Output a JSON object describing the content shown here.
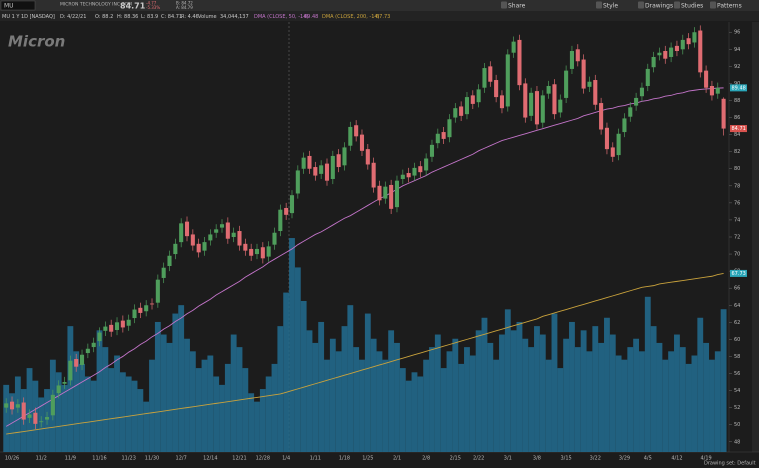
{
  "toolbar": {
    "symbol": "MU",
    "buttons": [
      "Share",
      "Style",
      "Drawings",
      "Studies",
      "Patterns"
    ]
  },
  "header": {
    "company": "MICRON TECHNOLOGY INC COM",
    "last": "84.71",
    "change": "-4.77",
    "change_pct": "-5.33%",
    "bid": "B: 84.72",
    "ask": "A: 84.79",
    "study_line": [
      "MU 1 Y 1D [NASDAQ]",
      "D: 4/22/21",
      "O: 88.2",
      "H: 88.36",
      "L: 83.9",
      "C: 84.71",
      "R: 4.46",
      "Volume"
    ],
    "volume_text": "34,044,137",
    "logo": "Micron",
    "drawing_set": "Drawing set: Default"
  },
  "chart_data": {
    "type": "candlestick",
    "categories": [
      null,
      "10/26",
      null,
      null,
      null,
      null,
      "11/2",
      null,
      null,
      null,
      null,
      "11/9",
      null,
      null,
      null,
      null,
      "11/16",
      null,
      null,
      null,
      null,
      "11/23",
      null,
      null,
      null,
      "11/30",
      null,
      null,
      null,
      null,
      "12/7",
      null,
      null,
      null,
      null,
      "12/14",
      null,
      null,
      null,
      null,
      "12/21",
      null,
      null,
      null,
      "12/28",
      null,
      null,
      null,
      "1/4",
      null,
      null,
      null,
      null,
      "1/11",
      null,
      null,
      null,
      null,
      "1/18",
      null,
      null,
      null,
      "1/25",
      null,
      null,
      null,
      null,
      "2/1",
      null,
      null,
      null,
      null,
      "2/8",
      null,
      null,
      null,
      null,
      "2/15",
      null,
      null,
      null,
      "2/22",
      null,
      null,
      null,
      null,
      "3/1",
      null,
      null,
      null,
      null,
      "3/8",
      null,
      null,
      null,
      null,
      "3/15",
      null,
      null,
      null,
      null,
      "3/22",
      null,
      null,
      null,
      null,
      "3/29",
      null,
      null,
      null,
      "4/5",
      null,
      null,
      null,
      null,
      "4/12",
      null,
      null,
      null,
      null,
      "4/19",
      null,
      null,
      null
    ],
    "open": [
      52.0,
      52.7,
      52.0,
      52.6,
      50.8,
      51.4,
      50.3,
      50.6,
      51.1,
      53.7,
      54.8,
      55.2,
      57.7,
      57.0,
      58.4,
      59.1,
      59.8,
      61.0,
      61.7,
      61.1,
      62.2,
      61.6,
      62.5,
      63.7,
      63.3,
      64.2,
      64.3,
      67.2,
      68.6,
      70.0,
      71.4,
      73.8,
      72.3,
      71.2,
      70.4,
      71.6,
      72.5,
      73.1,
      73.7,
      72.0,
      72.7,
      71.2,
      70.6,
      70.0,
      70.8,
      69.7,
      71.1,
      72.7,
      75.4,
      74.8,
      77.1,
      80.0,
      81.5,
      80.2,
      79.4,
      80.6,
      78.8,
      81.7,
      80.4,
      82.7,
      85.1,
      84.0,
      82.3,
      80.7,
      78.0,
      76.5,
      78.1,
      75.5,
      78.8,
      79.5,
      79.2,
      80.3,
      79.8,
      81.4,
      83.0,
      84.3,
      83.7,
      86.0,
      87.3,
      86.4,
      88.6,
      87.8,
      89.5,
      92.0,
      90.4,
      88.6,
      87.3,
      93.6,
      95.1,
      90.0,
      86.2,
      89.1,
      85.4,
      88.8,
      89.9,
      86.6,
      88.3,
      91.7,
      94.0,
      92.8,
      89.6,
      90.4,
      87.7,
      84.8,
      82.5,
      81.6,
      84.3,
      86.1,
      87.4,
      88.5,
      89.7,
      91.9,
      93.3,
      93.8,
      93.1,
      94.4,
      94.0,
      95.3,
      94.8,
      96.2,
      91.5,
      89.7,
      88.8,
      88.2
    ],
    "high": [
      53.1,
      53.3,
      53.0,
      53.2,
      51.8,
      52.0,
      51.0,
      51.5,
      54.1,
      55.2,
      55.6,
      58.1,
      58.3,
      58.8,
      59.5,
      60.2,
      61.4,
      62.1,
      62.3,
      62.6,
      62.8,
      62.9,
      64.1,
      64.3,
      64.6,
      64.8,
      67.6,
      69.0,
      70.4,
      71.8,
      74.2,
      74.4,
      72.9,
      71.8,
      72.0,
      72.9,
      73.5,
      74.1,
      74.3,
      73.1,
      73.3,
      71.8,
      71.2,
      71.2,
      71.4,
      71.5,
      73.1,
      75.8,
      76.0,
      77.5,
      80.4,
      81.9,
      82.1,
      80.8,
      81.0,
      81.2,
      82.1,
      82.3,
      83.1,
      85.5,
      85.7,
      84.6,
      82.9,
      81.3,
      78.6,
      78.5,
      78.7,
      79.2,
      79.9,
      80.1,
      80.7,
      80.9,
      81.8,
      83.4,
      84.7,
      84.9,
      86.4,
      87.7,
      87.9,
      89.0,
      89.2,
      89.9,
      92.4,
      92.6,
      91.0,
      89.2,
      94.0,
      95.5,
      95.7,
      90.6,
      89.5,
      89.7,
      89.2,
      90.3,
      90.5,
      88.7,
      92.1,
      94.4,
      94.6,
      93.4,
      90.8,
      91.0,
      88.3,
      85.4,
      83.1,
      84.7,
      86.5,
      87.8,
      88.9,
      90.1,
      92.3,
      93.7,
      94.2,
      94.4,
      94.8,
      95.0,
      95.7,
      95.9,
      96.6,
      96.8,
      92.1,
      90.3,
      90.1,
      88.36
    ],
    "low": [
      51.4,
      51.2,
      51.4,
      50.0,
      50.2,
      49.5,
      49.7,
      50.0,
      50.5,
      53.1,
      54.2,
      54.6,
      56.2,
      56.4,
      57.8,
      58.5,
      59.2,
      60.4,
      60.3,
      60.5,
      60.8,
      61.0,
      61.9,
      62.5,
      62.7,
      63.5,
      63.7,
      66.6,
      68.0,
      69.4,
      70.8,
      71.5,
      70.4,
      69.6,
      69.8,
      71.0,
      71.9,
      72.5,
      71.2,
      71.4,
      70.4,
      69.8,
      69.2,
      69.4,
      68.9,
      69.1,
      70.5,
      72.1,
      74.0,
      74.2,
      76.5,
      79.4,
      79.4,
      78.6,
      78.8,
      78.0,
      78.2,
      79.6,
      79.8,
      82.1,
      83.2,
      81.5,
      79.9,
      77.2,
      75.7,
      75.9,
      74.7,
      74.9,
      78.2,
      78.4,
      78.6,
      79.0,
      79.2,
      80.8,
      82.4,
      82.9,
      83.1,
      85.4,
      85.6,
      85.8,
      87.0,
      87.2,
      88.9,
      89.6,
      87.8,
      86.5,
      86.7,
      93.0,
      89.2,
      85.4,
      85.6,
      84.6,
      84.8,
      88.2,
      85.8,
      86.0,
      87.7,
      91.1,
      92.0,
      88.8,
      89.0,
      86.9,
      84.0,
      81.7,
      80.8,
      81.0,
      83.7,
      85.5,
      86.8,
      87.9,
      89.1,
      91.3,
      92.7,
      92.3,
      92.5,
      93.2,
      93.4,
      94.0,
      94.2,
      90.7,
      88.9,
      88.0,
      88.2,
      83.9
    ],
    "close": [
      52.5,
      51.8,
      52.4,
      50.6,
      51.2,
      50.1,
      50.4,
      50.9,
      53.5,
      54.6,
      55.0,
      57.5,
      56.8,
      58.2,
      58.9,
      59.6,
      60.8,
      61.5,
      60.9,
      62.0,
      61.4,
      62.3,
      63.5,
      63.1,
      64.0,
      64.1,
      67.0,
      68.4,
      69.8,
      71.2,
      73.6,
      72.1,
      71.0,
      70.2,
      71.4,
      72.3,
      72.9,
      73.5,
      71.8,
      72.5,
      71.0,
      70.4,
      69.8,
      70.6,
      69.5,
      70.9,
      72.5,
      75.2,
      74.6,
      76.9,
      79.8,
      81.3,
      80.0,
      79.2,
      80.4,
      78.6,
      81.5,
      80.2,
      82.5,
      84.9,
      83.8,
      82.1,
      80.5,
      77.8,
      76.3,
      77.9,
      75.3,
      78.6,
      79.3,
      79.0,
      80.1,
      79.6,
      81.2,
      82.8,
      84.1,
      83.5,
      85.8,
      87.1,
      86.2,
      88.4,
      87.6,
      89.3,
      91.8,
      90.2,
      88.4,
      87.1,
      93.4,
      94.9,
      89.8,
      86.0,
      88.9,
      85.2,
      88.6,
      89.7,
      86.4,
      88.1,
      91.5,
      93.8,
      92.6,
      89.4,
      90.2,
      87.5,
      84.6,
      82.3,
      81.4,
      84.1,
      85.9,
      87.2,
      88.3,
      89.5,
      91.7,
      93.1,
      93.6,
      92.9,
      94.2,
      93.8,
      95.1,
      94.6,
      96.0,
      91.3,
      89.5,
      88.6,
      89.48,
      84.71
    ],
    "up_color": "#4f9e5c",
    "down_color": "#e06c72",
    "volume": {
      "color": "#22698c",
      "lim": [
        0,
        102.5
      ],
      "values": [
        16,
        14,
        18,
        15,
        20,
        17,
        13,
        15,
        22,
        19,
        16,
        30,
        24,
        21,
        18,
        17,
        29,
        25,
        20,
        23,
        19,
        18,
        17,
        15,
        12,
        22,
        31,
        28,
        26,
        33,
        35,
        27,
        24,
        20,
        22,
        23,
        18,
        16,
        21,
        28,
        25,
        20,
        14,
        12,
        15,
        18,
        21,
        30,
        38,
        51,
        44,
        36,
        29,
        26,
        31,
        22,
        27,
        24,
        30,
        35,
        25,
        22,
        33,
        27,
        24,
        22,
        29,
        26,
        20,
        17,
        19,
        18,
        22,
        25,
        28,
        20,
        24,
        27,
        21,
        25,
        23,
        29,
        32,
        26,
        22,
        28,
        34,
        29,
        31,
        27,
        25,
        30,
        28,
        22,
        33,
        20,
        27,
        31,
        25,
        29,
        24,
        30,
        26,
        32,
        28,
        23,
        22,
        25,
        27,
        24,
        37,
        30,
        26,
        22,
        24,
        28,
        25,
        21,
        23,
        32,
        26,
        22,
        24,
        34.04
      ]
    },
    "series": [
      {
        "name": "DMA (CLOSE, 50, -14)",
        "color": "#c374c9",
        "values": [
          49.8,
          50.2,
          50.6,
          51.0,
          51.4,
          51.8,
          52.2,
          52.6,
          53.0,
          53.4,
          53.8,
          54.2,
          54.6,
          55.0,
          55.4,
          55.8,
          56.2,
          56.7,
          57.1,
          57.6,
          58.0,
          58.5,
          58.9,
          59.4,
          59.8,
          60.3,
          60.7,
          61.2,
          61.6,
          62.1,
          62.5,
          63.0,
          63.4,
          63.9,
          64.3,
          64.7,
          65.2,
          65.6,
          66.0,
          66.4,
          66.8,
          67.3,
          67.7,
          68.1,
          68.5,
          69.0,
          69.4,
          69.8,
          70.2,
          70.6,
          71.1,
          71.5,
          71.9,
          72.3,
          72.6,
          73.0,
          73.4,
          73.8,
          74.2,
          74.5,
          74.9,
          75.3,
          75.7,
          76.1,
          76.5,
          76.8,
          77.2,
          77.6,
          78.0,
          78.3,
          78.6,
          78.9,
          79.2,
          79.6,
          79.9,
          80.2,
          80.5,
          80.8,
          81.1,
          81.4,
          81.7,
          82.1,
          82.4,
          82.7,
          83.0,
          83.3,
          83.5,
          83.7,
          83.9,
          84.1,
          84.3,
          84.5,
          84.7,
          84.9,
          85.1,
          85.3,
          85.5,
          85.7,
          85.9,
          86.2,
          86.4,
          86.6,
          86.8,
          87.0,
          87.1,
          87.3,
          87.4,
          87.6,
          87.7,
          87.9,
          88.0,
          88.2,
          88.3,
          88.5,
          88.6,
          88.8,
          88.9,
          89.1,
          89.2,
          89.3,
          89.35,
          89.4,
          89.45,
          89.48
        ]
      },
      {
        "name": "DMA (CLOSE, 200, -14)",
        "color": "#c9a23c",
        "values": [
          48.9,
          49.0,
          49.1,
          49.2,
          49.3,
          49.4,
          49.5,
          49.6,
          49.7,
          49.8,
          49.9,
          50.0,
          50.1,
          50.2,
          50.3,
          50.4,
          50.5,
          50.6,
          50.7,
          50.8,
          50.9,
          51.0,
          51.1,
          51.2,
          51.3,
          51.4,
          51.5,
          51.6,
          51.7,
          51.8,
          51.9,
          52.0,
          52.1,
          52.2,
          52.3,
          52.4,
          52.5,
          52.6,
          52.7,
          52.8,
          52.9,
          53.0,
          53.1,
          53.2,
          53.3,
          53.4,
          53.5,
          53.6,
          53.8,
          54.0,
          54.2,
          54.4,
          54.6,
          54.8,
          55.0,
          55.2,
          55.4,
          55.6,
          55.8,
          56.0,
          56.2,
          56.4,
          56.6,
          56.8,
          57.0,
          57.2,
          57.4,
          57.6,
          57.8,
          58.0,
          58.2,
          58.4,
          58.6,
          58.8,
          59.0,
          59.2,
          59.4,
          59.6,
          59.8,
          60.0,
          60.2,
          60.4,
          60.6,
          60.8,
          61.0,
          61.2,
          61.4,
          61.6,
          61.8,
          62.0,
          62.2,
          62.4,
          62.7,
          62.9,
          63.1,
          63.3,
          63.5,
          63.7,
          63.9,
          64.1,
          64.3,
          64.5,
          64.7,
          64.9,
          65.1,
          65.3,
          65.5,
          65.7,
          65.9,
          66.1,
          66.2,
          66.3,
          66.5,
          66.6,
          66.7,
          66.8,
          66.9,
          67.0,
          67.1,
          67.2,
          67.3,
          67.4,
          67.6,
          67.73
        ]
      }
    ],
    "last_color": "#d9534f",
    "ylim": [
      46.8,
      97.2
    ],
    "yticks": [
      48,
      50,
      52,
      54,
      56,
      58,
      60,
      62,
      64,
      66,
      68,
      70,
      72,
      74,
      76,
      78,
      80,
      82,
      84,
      86,
      88,
      90,
      92,
      94,
      96
    ],
    "grid": false
  }
}
